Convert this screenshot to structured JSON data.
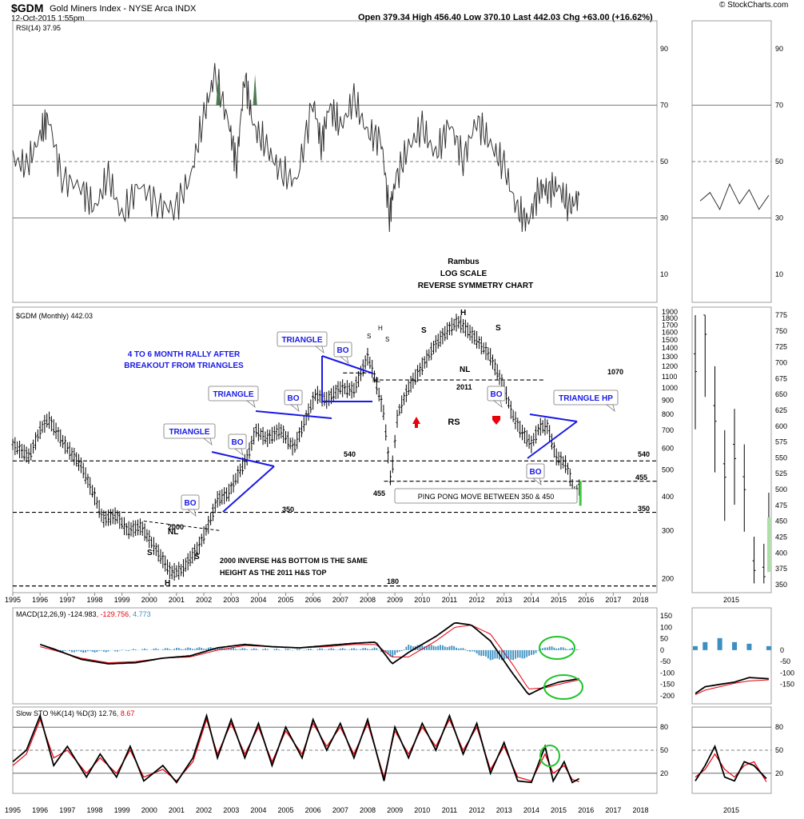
{
  "header": {
    "symbol": "$GDM",
    "name": "Gold Miners Index - NYSE Arca INDX",
    "date": "12-Oct-2015 1:55pm",
    "quote": "Open 379.34  High 456.40  Low 370.10  Last 442.03  Chg +63.00 (+16.62%)",
    "brand": "© StockCharts.com"
  },
  "colors": {
    "price": "#000000",
    "macd": "#000000",
    "signal": "#e8000b",
    "histogram": "#3d8fc0",
    "annotation_blue": "#1a1ae6",
    "up_arrow": "#e8000b",
    "ellipse": "#22c32d",
    "rsi_fill": "#4e7a52",
    "grid": "#bbbbbb"
  },
  "annotations": {
    "rambus": "Rambus",
    "log_scale": "LOG SCALE",
    "reverse_symmetry": "REVERSE SYMMETRY CHART",
    "rally_1": "4 TO 6 MONTH RALLY AFTER",
    "rally_2": "BREAKOUT FROM TRIANGLES",
    "triangle": "TRIANGLE",
    "triangle_hp": "TRIANGLE HP",
    "bo": "BO",
    "nl": "NL",
    "s": "S",
    "h": "H",
    "rs": "RS",
    "y2000": "2000",
    "y2011": "2011",
    "hs_1": "2000 INVERSE H&S BOTTOM IS THE SAME",
    "hs_2": "HEIGHT AS THE 2011 H&S TOP",
    "ping_pong": "PING PONG MOVE BETWEEN 350 & 450",
    "level_1070": "1070",
    "level_540": "540",
    "level_455": "455",
    "level_350": "350",
    "level_180": "180"
  },
  "chart_data": [
    {
      "type": "line",
      "panel": "RSI",
      "legend": "RSI(14) 37.95",
      "ylim": [
        0,
        100
      ],
      "yticks": [
        10,
        30,
        50,
        70,
        90
      ],
      "x": [
        1995.0,
        1995.5,
        1996.0,
        1996.3,
        1996.8,
        1997.5,
        1998.0,
        1998.5,
        1999.0,
        1999.6,
        2000.3,
        2000.9,
        2001.5,
        2002.0,
        2002.4,
        2002.9,
        2003.2,
        2003.5,
        2003.8,
        2004.3,
        2004.8,
        2005.4,
        2006.0,
        2006.3,
        2006.6,
        2007.0,
        2007.5,
        2008.0,
        2008.5,
        2008.8,
        2009.0,
        2009.5,
        2010.0,
        2010.5,
        2011.0,
        2011.5,
        2012.0,
        2012.5,
        2013.0,
        2013.5,
        2013.9,
        2014.3,
        2014.6,
        2015.0,
        2015.4,
        2015.75
      ],
      "values": [
        51,
        48,
        59,
        66,
        44,
        41,
        33,
        45,
        30,
        42,
        35,
        33,
        44,
        66,
        81,
        64,
        49,
        81,
        63,
        55,
        46,
        43,
        72,
        56,
        70,
        62,
        72,
        60,
        58,
        31,
        43,
        55,
        62,
        52,
        64,
        51,
        65,
        56,
        48,
        32,
        29,
        41,
        40,
        41,
        33,
        38
      ]
    },
    {
      "type": "line",
      "panel": "RSI inset",
      "x_label": "2015",
      "yticks": [
        10,
        30,
        50,
        70,
        90
      ],
      "x": [
        2014.4,
        2014.6,
        2014.8,
        2015.0,
        2015.2,
        2015.4,
        2015.6,
        2015.8
      ],
      "values": [
        36,
        39,
        33,
        42,
        35,
        40,
        33,
        38
      ]
    },
    {
      "type": "line",
      "panel": "Price",
      "legend": "$GDM (Monthly) 442.03",
      "scale": "log",
      "ylim": [
        185,
        1900
      ],
      "yticks_left": [
        200,
        300,
        400,
        500,
        600,
        700,
        800,
        900,
        1000,
        1100,
        1200,
        1300,
        1400,
        1500,
        1600,
        1700,
        1800,
        1900
      ],
      "x": [
        1995.0,
        1995.6,
        1996.0,
        1996.3,
        1996.9,
        1997.5,
        1998.0,
        1998.3,
        1998.8,
        1999.2,
        1999.7,
        2000.2,
        2000.8,
        2001.2,
        2001.8,
        2002.2,
        2002.5,
        2002.9,
        2003.2,
        2003.6,
        2003.9,
        2004.3,
        2004.8,
        2005.3,
        2005.8,
        2006.1,
        2006.5,
        2007.0,
        2007.5,
        2008.0,
        2008.2,
        2008.6,
        2008.85,
        2009.1,
        2009.5,
        2010.0,
        2010.5,
        2011.0,
        2011.3,
        2011.6,
        2012.0,
        2012.5,
        2013.0,
        2013.3,
        2013.6,
        2014.0,
        2014.3,
        2014.6,
        2014.9,
        2015.3,
        2015.6,
        2015.8
      ],
      "values": [
        620,
        560,
        700,
        770,
        620,
        520,
        400,
        330,
        340,
        300,
        310,
        260,
        210,
        215,
        260,
        320,
        390,
        410,
        470,
        560,
        700,
        650,
        700,
        600,
        800,
        950,
        900,
        1000,
        980,
        1300,
        1150,
        800,
        450,
        800,
        1000,
        1200,
        1450,
        1650,
        1750,
        1650,
        1500,
        1300,
        1000,
        800,
        700,
        620,
        720,
        720,
        560,
        520,
        400,
        442
      ]
    },
    {
      "type": "line",
      "panel": "Price inset",
      "x_label": "2015",
      "yticks": [
        350,
        375,
        400,
        425,
        450,
        475,
        500,
        525,
        550,
        575,
        600,
        625,
        650,
        675,
        700,
        725,
        750,
        775
      ],
      "x": [
        2014.3,
        2014.5,
        2014.7,
        2014.9,
        2015.1,
        2015.3,
        2015.5,
        2015.7,
        2015.8
      ],
      "values": [
        700,
        760,
        620,
        530,
        560,
        510,
        380,
        370,
        442
      ]
    },
    {
      "type": "line",
      "panel": "MACD",
      "legend_label": "MACD(12,26,9)",
      "legend_values": [
        "-124.983",
        "-129.756",
        "4.773"
      ],
      "yticks": [
        150,
        100,
        50,
        0,
        -50,
        -100,
        -150,
        -200
      ],
      "x": [
        1995.0,
        1996.0,
        1996.5,
        1997.5,
        1998.5,
        1999.5,
        2000.5,
        2001.5,
        2002.5,
        2003.5,
        2004.5,
        2005.5,
        2006.5,
        2007.5,
        2008.3,
        2008.9,
        2009.5,
        2010.5,
        2011.2,
        2011.8,
        2012.5,
        2013.3,
        2013.9,
        2014.5,
        2015.0,
        2015.75
      ],
      "series": [
        {
          "name": "MACD",
          "values": [
            -10,
            25,
            5,
            -40,
            -60,
            -55,
            -35,
            -25,
            10,
            25,
            15,
            10,
            20,
            30,
            35,
            -60,
            -10,
            60,
            120,
            110,
            40,
            -100,
            -195,
            -160,
            -140,
            -125
          ]
        },
        {
          "name": "Signal",
          "values": [
            -20,
            15,
            0,
            -35,
            -55,
            -50,
            -35,
            -30,
            0,
            20,
            15,
            10,
            15,
            25,
            25,
            -30,
            -30,
            40,
            100,
            110,
            70,
            -60,
            -170,
            -165,
            -150,
            -130
          ]
        },
        {
          "name": "Histogram",
          "values": [
            5,
            5,
            -2,
            -8,
            -5,
            2,
            5,
            8,
            10,
            5,
            3,
            2,
            5,
            5,
            8,
            -30,
            20,
            20,
            15,
            -5,
            -40,
            -40,
            -30,
            15,
            10,
            5
          ]
        }
      ]
    },
    {
      "type": "line",
      "panel": "MACD inset",
      "x_label": "2015",
      "yticks": [
        0,
        -50,
        -100,
        -150
      ],
      "x": [
        2014.3,
        2014.5,
        2014.8,
        2015.1,
        2015.4,
        2015.8
      ],
      "series": [
        {
          "name": "MACD",
          "values": [
            -190,
            -160,
            -150,
            -140,
            -120,
            -125
          ]
        },
        {
          "name": "Signal",
          "values": [
            -195,
            -175,
            -160,
            -145,
            -135,
            -130
          ]
        },
        {
          "name": "Histogram",
          "values": [
            5,
            10,
            15,
            10,
            8,
            5
          ]
        }
      ]
    },
    {
      "type": "line",
      "panel": "Slow STO",
      "legend_label": "Slow STO %K(14) %D(3)",
      "legend_values": [
        "12.76",
        "8.67"
      ],
      "yticks": [
        80,
        50,
        20
      ],
      "x": [
        1995.0,
        1995.5,
        1996.0,
        1996.5,
        1997.0,
        1997.7,
        1998.2,
        1998.8,
        1999.3,
        1999.8,
        2000.5,
        2001.0,
        2001.6,
        2002.1,
        2002.5,
        2003.0,
        2003.5,
        2004.0,
        2004.5,
        2005.0,
        2005.6,
        2006.0,
        2006.5,
        2007.0,
        2007.5,
        2008.0,
        2008.6,
        2009.0,
        2009.5,
        2010.0,
        2010.5,
        2011.0,
        2011.5,
        2012.0,
        2012.5,
        2013.0,
        2013.5,
        2014.0,
        2014.5,
        2014.8,
        2015.2,
        2015.5,
        2015.75
      ],
      "series": [
        {
          "name": "%K",
          "values": [
            35,
            50,
            95,
            30,
            55,
            15,
            45,
            15,
            55,
            10,
            30,
            8,
            40,
            95,
            40,
            90,
            40,
            85,
            30,
            80,
            40,
            90,
            50,
            85,
            40,
            90,
            10,
            80,
            40,
            85,
            50,
            95,
            45,
            85,
            20,
            60,
            10,
            8,
            55,
            10,
            35,
            8,
            13
          ]
        },
        {
          "name": "%D",
          "values": [
            30,
            45,
            90,
            40,
            50,
            20,
            40,
            20,
            50,
            15,
            25,
            10,
            35,
            90,
            45,
            85,
            45,
            80,
            35,
            75,
            45,
            85,
            55,
            80,
            45,
            85,
            15,
            75,
            45,
            80,
            55,
            90,
            50,
            80,
            25,
            55,
            15,
            10,
            45,
            20,
            30,
            12,
            9
          ]
        }
      ]
    },
    {
      "type": "line",
      "panel": "Slow STO inset",
      "x_label": "2015",
      "yticks": [
        80,
        50,
        20
      ],
      "x": [
        2014.3,
        2014.5,
        2014.7,
        2014.9,
        2015.1,
        2015.3,
        2015.5,
        2015.75
      ],
      "series": [
        {
          "name": "%K",
          "values": [
            10,
            30,
            55,
            15,
            10,
            35,
            30,
            13
          ]
        },
        {
          "name": "%D",
          "values": [
            15,
            25,
            45,
            25,
            15,
            30,
            35,
            9
          ]
        }
      ]
    }
  ],
  "x_axis_years": [
    "1995",
    "1996",
    "1997",
    "1998",
    "1999",
    "2000",
    "2001",
    "2002",
    "2003",
    "2004",
    "2005",
    "2006",
    "2007",
    "2008",
    "2009",
    "2010",
    "2011",
    "2012",
    "2013",
    "2014",
    "2015",
    "2016",
    "2017",
    "2018"
  ]
}
